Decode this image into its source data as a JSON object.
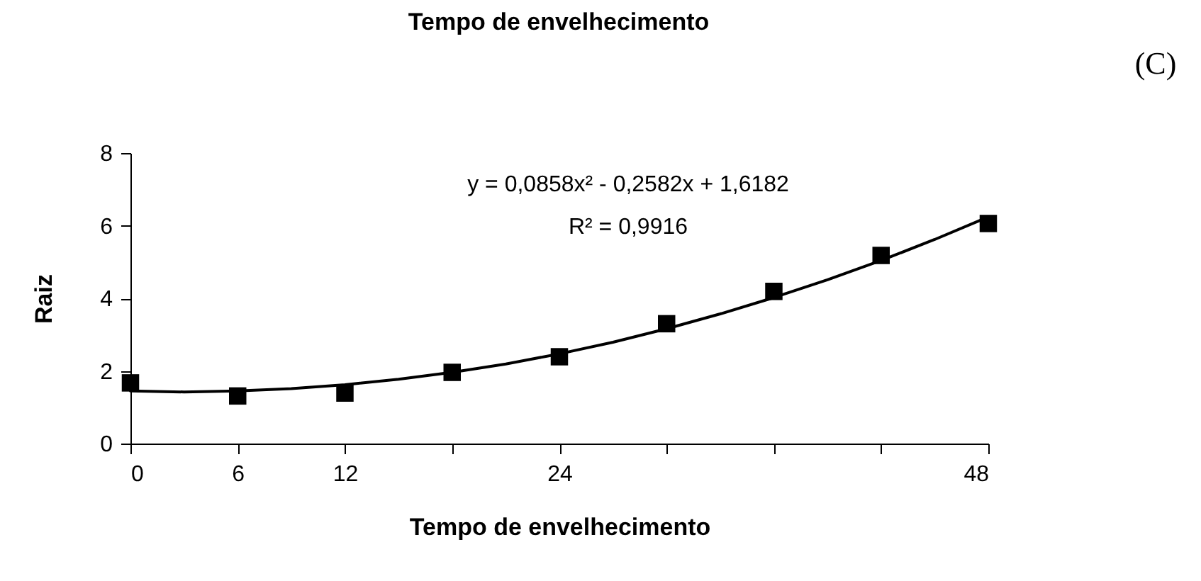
{
  "chart_data": {
    "type": "scatter",
    "title": "Tempo de envelhecimento",
    "xlabel": "Tempo de envelhecimento",
    "ylabel": "Raiz",
    "annotations": [
      "(C)",
      "y = 0,0858x² - 0,2582x + 1,6182",
      "R² = 0,9916"
    ],
    "x": [
      0,
      6,
      12,
      18,
      24,
      30,
      36,
      42,
      48
    ],
    "xlim": [
      0,
      48
    ],
    "ylim": [
      0,
      8
    ],
    "xticks": [
      0,
      6,
      12,
      {
        "value": 18,
        "label": null
      },
      24,
      {
        "value": 30,
        "label": null
      },
      {
        "value": 36,
        "label": null
      },
      {
        "value": 42,
        "label": null
      },
      48
    ],
    "yticks": [
      0,
      2,
      4,
      6,
      8
    ],
    "grid": false,
    "series": [
      {
        "color": "#000000",
        "marker": "square",
        "values": [
          1.67,
          1.31,
          1.39,
          1.96,
          2.39,
          3.3,
          4.19,
          5.18,
          6.06
        ]
      },
      {
        "type": "line",
        "color": "#000000",
        "line_style": "solid",
        "x": [
          0,
          3,
          6,
          9,
          12,
          15,
          18,
          21,
          24,
          27,
          30,
          33,
          36,
          39,
          42,
          45,
          48
        ],
        "values": [
          1.45,
          1.42,
          1.45,
          1.51,
          1.62,
          1.77,
          1.96,
          2.19,
          2.47,
          2.79,
          3.16,
          3.57,
          4.02,
          4.51,
          5.04,
          5.62,
          6.24
        ]
      }
    ]
  }
}
